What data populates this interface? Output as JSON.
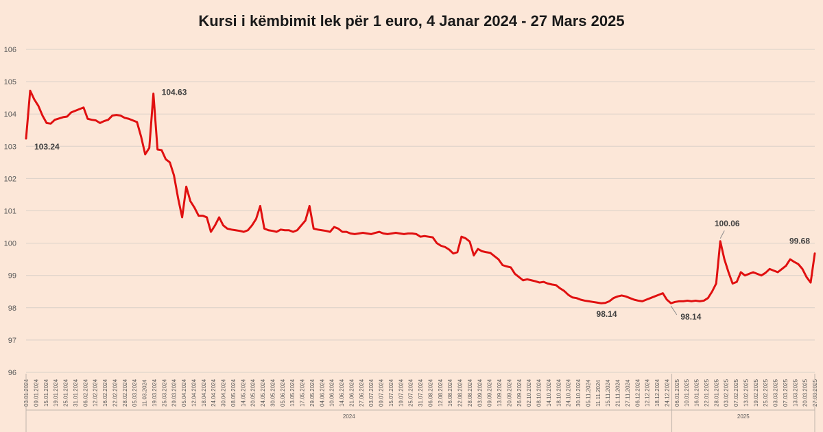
{
  "title": "Kursi i këmbimit lek për 1 euro, 4 Janar 2024 - 27 Mars 2025",
  "chart_data": {
    "type": "line",
    "title": "Kursi i këmbimit lek për 1 euro, 4 Janar 2024 - 27 Mars 2025",
    "xlabel": "",
    "ylabel": "",
    "ylim": [
      96,
      106
    ],
    "yticks": [
      96,
      97,
      98,
      99,
      100,
      101,
      102,
      103,
      104,
      105,
      106
    ],
    "grid": true,
    "line_color": "#e01010",
    "x_tick_labels": [
      "03.01.2024",
      "09.01.2024",
      "15.01.2024",
      "19.01.2024",
      "25.01.2024",
      "31.01.2024",
      "06.02.2024",
      "12.02.2024",
      "16.02.2024",
      "22.02.2024",
      "28.02.2024",
      "05.03.2024",
      "11.03.2024",
      "19.03.2024",
      "25.03.2024",
      "29.03.2024",
      "05.04.2024",
      "12.04.2024",
      "18.04.2024",
      "24.04.2024",
      "30.04.2024",
      "08.05.2024",
      "14.05.2024",
      "20.05.2024",
      "24.05.2024",
      "30.05.2024",
      "05.06.2024",
      "13.05.2024",
      "17.05.2024",
      "29.05.2024",
      "04.06.2024",
      "10.06.2024",
      "14.06.2024",
      "21.06.2024",
      "27.06.2024",
      "03.07.2024",
      "09.07.2024",
      "15.07.2024",
      "19.07.2024",
      "25.07.2024",
      "31.07.2024",
      "06.08.2024",
      "12.08.2024",
      "16.08.2024",
      "22.08.2024",
      "28.08.2024",
      "03.09.2024",
      "09.09.2024",
      "13.09.2024",
      "20.09.2024",
      "26.09.2024",
      "02.10.2024",
      "08.10.2024",
      "14.10.2024",
      "18.10.2024",
      "24.10.2024",
      "30.10.2024",
      "05.11.2024",
      "11.11.2024",
      "15.11.2024",
      "21.11.2024",
      "27.11.2024",
      "06.12.2024",
      "12.12.2024",
      "18.12.2024",
      "24.12.2024",
      "06.01.2025",
      "10.01.2025",
      "16.01.2025",
      "22.01.2025",
      "28.01.2025",
      "03.02.2025",
      "07.02.2025",
      "13.02.2025",
      "19.02.2025",
      "25.02.2025",
      "03.03.2025",
      "07.03.2025",
      "13.03.2025",
      "20.03.2025",
      "27.03.2025"
    ],
    "year_labels": [
      "2024",
      "2025"
    ],
    "series": [
      {
        "values": [
          103.24,
          104.72,
          104.45,
          104.25,
          103.95,
          103.72,
          103.7,
          103.82,
          103.86,
          103.9,
          103.92,
          104.05,
          104.1,
          104.15,
          104.2,
          103.85,
          103.82,
          103.8,
          103.72,
          103.78,
          103.82,
          103.95,
          103.97,
          103.95,
          103.88,
          103.85,
          103.8,
          103.75,
          103.3,
          102.75,
          102.95,
          104.63,
          102.9,
          102.88,
          102.6,
          102.5,
          102.1,
          101.4,
          100.8,
          101.75,
          101.3,
          101.1,
          100.85,
          100.85,
          100.8,
          100.35,
          100.55,
          100.8,
          100.55,
          100.45,
          100.42,
          100.4,
          100.38,
          100.35,
          100.4,
          100.55,
          100.75,
          101.15,
          100.45,
          100.4,
          100.38,
          100.35,
          100.42,
          100.4,
          100.4,
          100.35,
          100.4,
          100.55,
          100.7,
          101.15,
          100.45,
          100.42,
          100.4,
          100.38,
          100.35,
          100.5,
          100.45,
          100.35,
          100.35,
          100.3,
          100.28,
          100.3,
          100.32,
          100.3,
          100.28,
          100.32,
          100.35,
          100.3,
          100.28,
          100.3,
          100.32,
          100.3,
          100.28,
          100.3,
          100.3,
          100.28,
          100.2,
          100.22,
          100.2,
          100.18,
          100.0,
          99.92,
          99.88,
          99.8,
          99.68,
          99.72,
          100.2,
          100.15,
          100.05,
          99.62,
          99.82,
          99.75,
          99.72,
          99.7,
          99.6,
          99.5,
          99.32,
          99.28,
          99.25,
          99.05,
          98.95,
          98.85,
          98.88,
          98.85,
          98.82,
          98.78,
          98.8,
          98.75,
          98.72,
          98.7,
          98.6,
          98.52,
          98.4,
          98.32,
          98.3,
          98.25,
          98.22,
          98.2,
          98.18,
          98.16,
          98.14,
          98.15,
          98.2,
          98.3,
          98.35,
          98.38,
          98.35,
          98.3,
          98.25,
          98.22,
          98.2,
          98.25,
          98.3,
          98.35,
          98.4,
          98.45,
          98.25,
          98.14,
          98.18,
          98.2,
          98.2,
          98.22,
          98.2,
          98.22,
          98.2,
          98.22,
          98.3,
          98.5,
          98.75,
          100.06,
          99.5,
          99.1,
          98.75,
          98.8,
          99.1,
          99.0,
          99.05,
          99.1,
          99.05,
          99.0,
          99.08,
          99.2,
          99.15,
          99.1,
          99.2,
          99.3,
          99.5,
          99.42,
          99.35,
          99.2,
          98.95,
          98.78,
          99.68
        ]
      }
    ],
    "annotations": [
      "103.24",
      "104.63",
      "98.14",
      "98.14",
      "100.06",
      "99.68"
    ]
  }
}
